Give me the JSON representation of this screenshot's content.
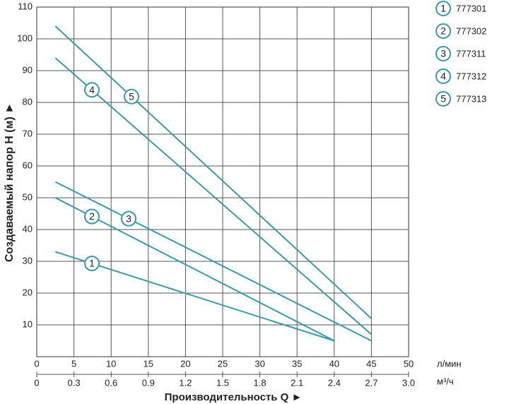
{
  "chart_data": {
    "type": "line",
    "y_label": "Создаваемый напор Н (м) ►",
    "x_label": "Производительность Q ►",
    "x_unit": "л/мин",
    "x2_unit": "м³/ч",
    "xlim": [
      0,
      50
    ],
    "xticks": [
      0,
      5,
      10,
      15,
      20,
      25,
      30,
      35,
      40,
      45,
      50
    ],
    "x2lim": [
      0,
      3
    ],
    "x2ticks": [
      0,
      0.3,
      0.6,
      0.9,
      1.2,
      1.5,
      1.8,
      2.1,
      2.4,
      2.7,
      {
        "value": 3,
        "label": "3.0"
      }
    ],
    "ylim": [
      0,
      110
    ],
    "yticks": [
      10,
      20,
      30,
      40,
      50,
      60,
      70,
      80,
      90,
      100,
      110
    ],
    "grid": true,
    "color": "#3a9aa6",
    "series": [
      {
        "marker": "1",
        "name": "777301",
        "x": [
          2.5,
          40
        ],
        "values": [
          33,
          5
        ]
      },
      {
        "marker": "2",
        "name": "777302",
        "x": [
          2.5,
          40
        ],
        "values": [
          50,
          5
        ]
      },
      {
        "marker": "3",
        "name": "777311",
        "x": [
          2.5,
          45
        ],
        "values": [
          55,
          5
        ]
      },
      {
        "marker": "4",
        "name": "777312",
        "x": [
          2.5,
          45
        ],
        "values": [
          94,
          7
        ]
      },
      {
        "marker": "5",
        "name": "777313",
        "x": [
          2.5,
          45
        ],
        "values": [
          104,
          12
        ]
      }
    ]
  }
}
